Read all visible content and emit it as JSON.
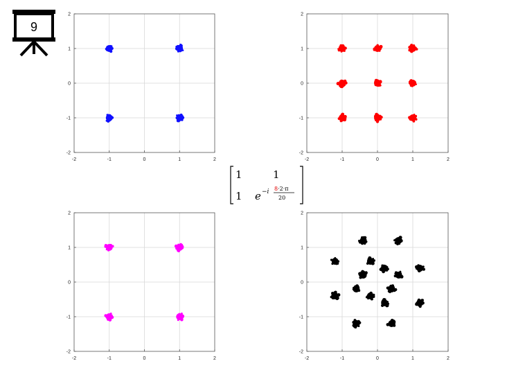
{
  "slide": {
    "number": "9"
  },
  "matrix": {
    "r1c1": "1",
    "r1c2": "1",
    "r2c1": "1",
    "base": "e",
    "exp_prefix": "−i",
    "numerator_highlight": "8",
    "numerator_rest": "·2·π",
    "denominator": "20"
  },
  "colors": {
    "blue": "#1010ff",
    "red": "#ff0000",
    "magenta": "#ff00ff",
    "black": "#000000",
    "highlight": "#e00000"
  },
  "chart_data": [
    {
      "type": "scatter",
      "name": "4-point constellation",
      "xlim": [
        -2,
        2
      ],
      "ylim": [
        -2,
        2
      ],
      "xticks": [
        "-2",
        "-1",
        "0",
        "1",
        "2"
      ],
      "yticks": [
        "2",
        "1",
        "0",
        "-1",
        "-2"
      ],
      "grid": true,
      "color": "#1010ff",
      "points": [
        [
          -1,
          1
        ],
        [
          1,
          1
        ],
        [
          -1,
          -1
        ],
        [
          1,
          -1
        ]
      ]
    },
    {
      "type": "scatter",
      "name": "9-point constellation",
      "xlim": [
        -2,
        2
      ],
      "ylim": [
        -2,
        2
      ],
      "xticks": [
        "-2",
        "-1",
        "0",
        "1",
        "2"
      ],
      "yticks": [
        "2",
        "1",
        "0",
        "-1",
        "-2"
      ],
      "grid": true,
      "color": "#ff0000",
      "points": [
        [
          -1,
          1
        ],
        [
          0,
          1
        ],
        [
          1,
          1
        ],
        [
          -1,
          0
        ],
        [
          0,
          0
        ],
        [
          1,
          0
        ],
        [
          -1,
          -1
        ],
        [
          0,
          -1
        ],
        [
          1,
          -1
        ]
      ]
    },
    {
      "type": "scatter",
      "name": "4-point constellation",
      "xlim": [
        -2,
        2
      ],
      "ylim": [
        -2,
        2
      ],
      "xticks": [
        "-2",
        "-1",
        "0",
        "1",
        "2"
      ],
      "yticks": [
        "2",
        "1",
        "0",
        "-1",
        "-2"
      ],
      "grid": true,
      "color": "#ff00ff",
      "points": [
        [
          -1,
          1
        ],
        [
          1,
          1
        ],
        [
          -1,
          -1
        ],
        [
          1,
          -1
        ]
      ]
    },
    {
      "type": "scatter",
      "name": "16-point constellation",
      "xlim": [
        -2,
        2
      ],
      "ylim": [
        -2,
        2
      ],
      "xticks": [
        "-2",
        "-1",
        "0",
        "1",
        "2"
      ],
      "yticks": [
        "2",
        "1",
        "0",
        "-1",
        "-2"
      ],
      "grid": true,
      "color": "#000000",
      "points": [
        [
          -0.4,
          1.2
        ],
        [
          0.6,
          1.2
        ],
        [
          -1.2,
          0.6
        ],
        [
          -0.2,
          0.6
        ],
        [
          0.2,
          0.4
        ],
        [
          1.2,
          0.4
        ],
        [
          -0.4,
          0.2
        ],
        [
          0.6,
          0.2
        ],
        [
          -0.6,
          -0.2
        ],
        [
          0.4,
          -0.2
        ],
        [
          -1.2,
          -0.4
        ],
        [
          -0.2,
          -0.4
        ],
        [
          0.2,
          -0.6
        ],
        [
          1.2,
          -0.6
        ],
        [
          -0.6,
          -1.2
        ],
        [
          0.4,
          -1.2
        ]
      ]
    }
  ]
}
